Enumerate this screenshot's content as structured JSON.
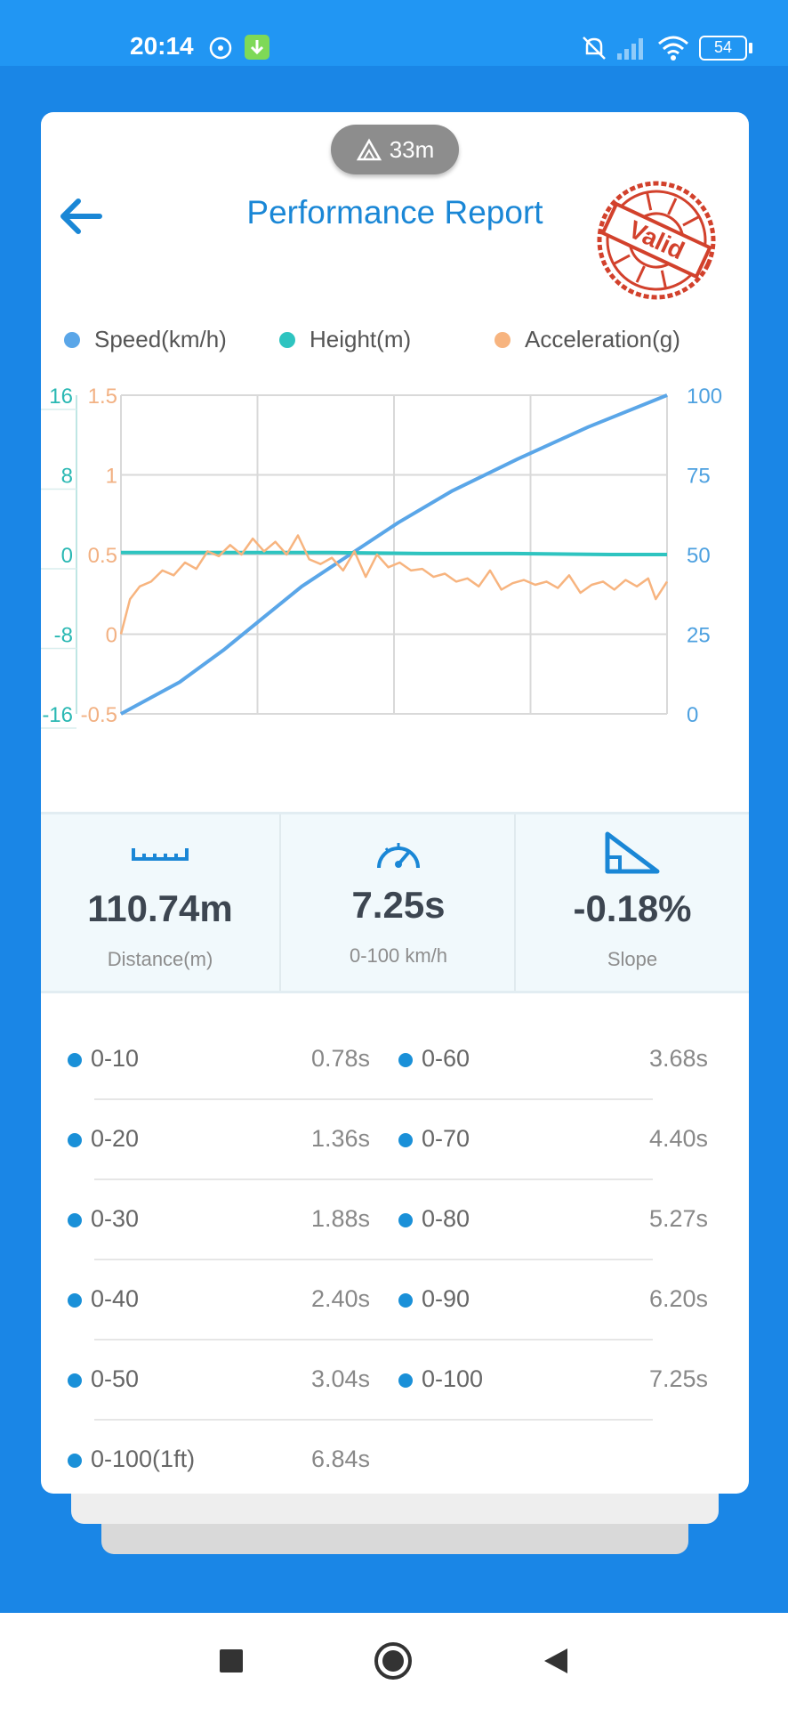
{
  "status_bar": {
    "time": "20:14",
    "battery": "54",
    "icons": [
      "tidal-icon",
      "download-icon",
      "mute-icon",
      "signal-icon",
      "wifi-icon",
      "battery-icon"
    ]
  },
  "header": {
    "altitude": "33m",
    "title": "Performance Report",
    "stamp_text": "Valid"
  },
  "legend": [
    {
      "label": "Speed(km/h)",
      "color": "#5aa6e8"
    },
    {
      "label": "Height(m)",
      "color": "#2ec4c0"
    },
    {
      "label": "Acceleration(g)",
      "color": "#f7b47f"
    }
  ],
  "chart_data": {
    "type": "line",
    "title": "",
    "xlabel": "",
    "ylabel": "",
    "axes": {
      "height": {
        "ticks": [
          "16",
          "8",
          "0",
          "-8",
          "-16"
        ],
        "range": [
          -16,
          16
        ],
        "color": "#2ab8b3"
      },
      "acceleration": {
        "ticks": [
          "1.5",
          "1",
          "0.5",
          "0",
          "-0.5"
        ],
        "range": [
          -0.5,
          1.5
        ],
        "color": "#f2b183"
      },
      "speed": {
        "ticks": [
          "100",
          "75",
          "50",
          "25",
          "0"
        ],
        "range": [
          0,
          100
        ],
        "color": "#4ea1e0"
      }
    },
    "x_range": [
      0,
      7.25
    ],
    "grid": true,
    "series": [
      {
        "name": "Speed(km/h)",
        "axis": "speed",
        "color": "#5aa6e8",
        "x": [
          0,
          0.78,
          1.36,
          1.88,
          2.4,
          3.04,
          3.68,
          4.4,
          5.27,
          6.2,
          7.25
        ],
        "y": [
          0,
          10,
          20,
          30,
          40,
          50,
          60,
          70,
          80,
          90,
          100
        ]
      },
      {
        "name": "Height(m)",
        "axis": "height",
        "color": "#2ec4c0",
        "x": [
          0,
          1.5,
          2.8,
          4.0,
          5.2,
          6.5,
          7.25
        ],
        "y": [
          0.2,
          0.2,
          0.2,
          0.1,
          0.1,
          0.0,
          0.0
        ]
      },
      {
        "name": "Acceleration(g)",
        "axis": "acceleration",
        "color": "#f7b47f",
        "x": [
          0,
          0.12,
          0.25,
          0.4,
          0.55,
          0.7,
          0.85,
          1.0,
          1.15,
          1.3,
          1.45,
          1.6,
          1.75,
          1.9,
          2.05,
          2.2,
          2.35,
          2.5,
          2.65,
          2.8,
          2.95,
          3.1,
          3.25,
          3.4,
          3.55,
          3.7,
          3.85,
          4.0,
          4.15,
          4.3,
          4.45,
          4.6,
          4.75,
          4.9,
          5.05,
          5.2,
          5.35,
          5.5,
          5.65,
          5.8,
          5.95,
          6.1,
          6.25,
          6.4,
          6.55,
          6.7,
          6.85,
          7.0,
          7.1,
          7.25
        ],
        "y": [
          0.0,
          0.22,
          0.3,
          0.33,
          0.4,
          0.37,
          0.45,
          0.41,
          0.52,
          0.49,
          0.56,
          0.5,
          0.6,
          0.52,
          0.58,
          0.5,
          0.62,
          0.47,
          0.44,
          0.48,
          0.4,
          0.52,
          0.36,
          0.5,
          0.42,
          0.45,
          0.4,
          0.41,
          0.36,
          0.38,
          0.33,
          0.35,
          0.3,
          0.4,
          0.28,
          0.32,
          0.34,
          0.31,
          0.33,
          0.29,
          0.37,
          0.26,
          0.31,
          0.33,
          0.28,
          0.34,
          0.3,
          0.35,
          0.22,
          0.33
        ]
      }
    ]
  },
  "stats": [
    {
      "icon": "ruler-icon",
      "value": "110.74m",
      "label": "Distance(m)"
    },
    {
      "icon": "speedometer-icon",
      "value": "7.25s",
      "label": "0-100 km/h"
    },
    {
      "icon": "slope-icon",
      "value": "-0.18%",
      "label": "Slope"
    }
  ],
  "splits": [
    {
      "left_label": "0-10",
      "left_value": "0.78s",
      "right_label": "0-60",
      "right_value": "3.68s"
    },
    {
      "left_label": "0-20",
      "left_value": "1.36s",
      "right_label": "0-70",
      "right_value": "4.40s"
    },
    {
      "left_label": "0-30",
      "left_value": "1.88s",
      "right_label": "0-80",
      "right_value": "5.27s"
    },
    {
      "left_label": "0-40",
      "left_value": "2.40s",
      "right_label": "0-90",
      "right_value": "6.20s"
    },
    {
      "left_label": "0-50",
      "left_value": "3.04s",
      "right_label": "0-100",
      "right_value": "7.25s"
    },
    {
      "left_label": "0-100(1ft)",
      "left_value": "6.84s",
      "right_label": "",
      "right_value": ""
    }
  ],
  "nav": [
    "recents-square-icon",
    "home-circle-icon",
    "back-triangle-icon"
  ]
}
